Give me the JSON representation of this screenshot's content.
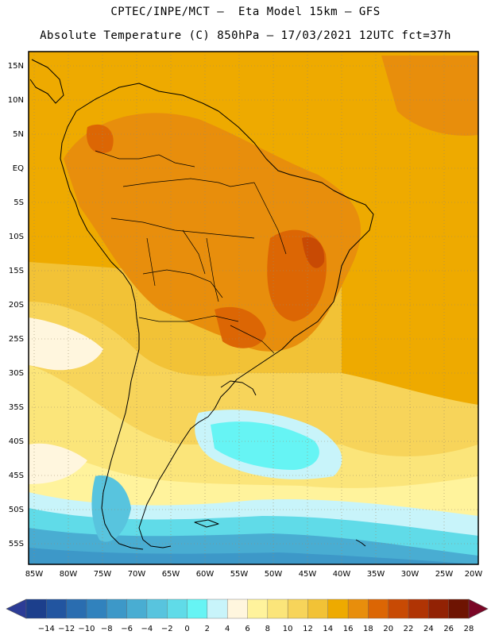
{
  "title_line1": "CPTEC/INPE/MCT —  Eta Model 15km — GFS",
  "title_line2": "Absolute Temperature (C) 850hPa — 17/03/2021 12UTC fct=37h",
  "lat_labels": [
    "15N",
    "10N",
    "5N",
    "EQ",
    "5S",
    "10S",
    "15S",
    "20S",
    "25S",
    "30S",
    "35S",
    "40S",
    "45S",
    "50S",
    "55S"
  ],
  "lon_labels": [
    "85W",
    "80W",
    "75W",
    "70W",
    "65W",
    "60W",
    "55W",
    "50W",
    "45W",
    "40W",
    "35W",
    "30W",
    "25W",
    "20W"
  ],
  "colorbar": {
    "labels": [
      "-14",
      "-12",
      "-10",
      "-8",
      "-6",
      "-4",
      "-2",
      "0",
      "2",
      "4",
      "6",
      "8",
      "10",
      "12",
      "14",
      "16",
      "18",
      "20",
      "22",
      "24",
      "26",
      "28"
    ],
    "colors": [
      "#1c3f8c",
      "#2255a0",
      "#2a6db0",
      "#3182bd",
      "#3d98c8",
      "#49add2",
      "#58c4de",
      "#60dbe8",
      "#66f4f4",
      "#c8f4fa",
      "#fff6de",
      "#fff39c",
      "#fbe57a",
      "#f7d45a",
      "#f2c236",
      "#eeaa00",
      "#e88e0c",
      "#dc6604",
      "#c84a04",
      "#b03404",
      "#922204",
      "#6e1402"
    ],
    "under_color": "#2c3c96",
    "over_color": "#7a0626"
  }
}
